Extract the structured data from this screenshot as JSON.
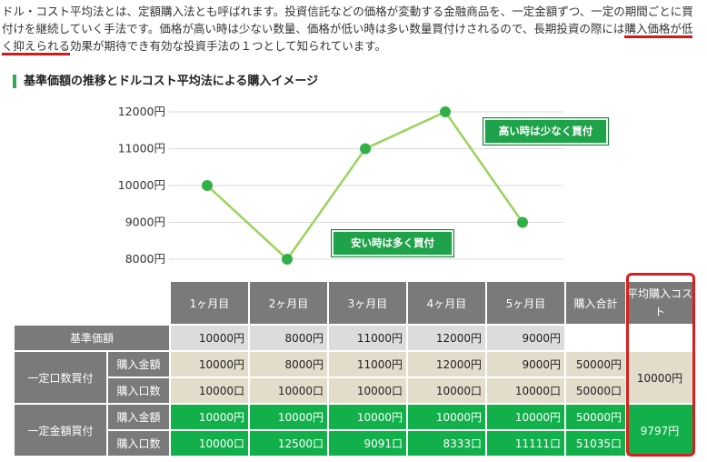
{
  "intro": {
    "part1": "ドル・コスト平均法とは、定額購入法とも呼ばれます。投資信託などの価格が変動する金融商品を、一定金額ずつ、一定の期間ごとに買付けを継続していく手法です。価格が高い時は少ない数量、価格が低い時は多い数量買付けされるので、長期投資の際には",
    "highlight": "購入価格が低く抑えられる",
    "part2": "効果が期待でき有効な投資手法の１つとして知られています。"
  },
  "section_title": "基準価額の推移とドルコスト平均法による購入イメージ",
  "chart_data": {
    "type": "line",
    "categories": [
      "1ヶ月目",
      "2ヶ月目",
      "3ヶ月目",
      "4ヶ月目",
      "5ヶ月目"
    ],
    "values": [
      10000,
      8000,
      11000,
      12000,
      9000
    ],
    "ylim": [
      8000,
      12000
    ],
    "yticks": [
      "12000円",
      "11000円",
      "10000円",
      "9000円",
      "8000円"
    ],
    "grid": true,
    "line_color": "#9ad35c",
    "point_color": "#32b048",
    "annotations": [
      "高い時は少なく買付",
      "安い時は多く買付"
    ]
  },
  "table": {
    "headers": [
      "1ヶ月目",
      "2ヶ月目",
      "3ヶ月目",
      "4ヶ月目",
      "5ヶ月目",
      "購入合計"
    ],
    "avg_header": "平均購入コスト",
    "base_label": "基準価額",
    "base_values": [
      "10000円",
      "8000円",
      "11000円",
      "12000円",
      "9000円"
    ],
    "fixed_qty_label": "一定口数買付",
    "fixed_amt_label": "一定金額買付",
    "amount_label": "購入金額",
    "units_label": "購入口数",
    "qty_amounts": [
      "10000円",
      "8000円",
      "11000円",
      "12000円",
      "9000円",
      "50000円"
    ],
    "qty_units": [
      "10000口",
      "10000口",
      "10000口",
      "10000口",
      "10000口",
      "50000口"
    ],
    "qty_avg": "10000円",
    "amt_amounts": [
      "10000円",
      "10000円",
      "10000円",
      "10000円",
      "10000円",
      "50000円"
    ],
    "amt_units": [
      "10000口",
      "12500口",
      "9091口",
      "8333口",
      "11111口",
      "51035口"
    ],
    "amt_avg": "9797円"
  }
}
